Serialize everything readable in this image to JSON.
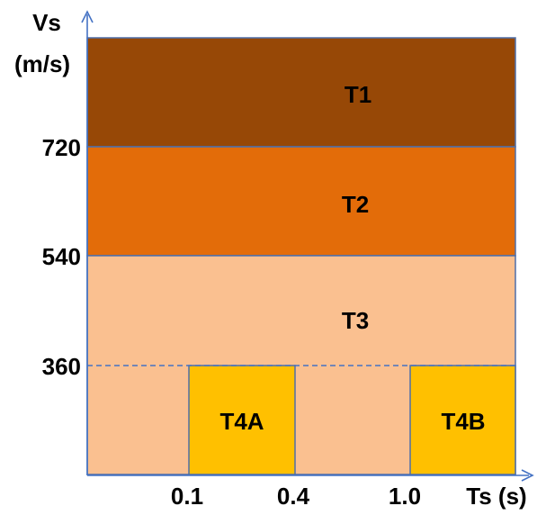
{
  "axes": {
    "y_title_line1": "Vs",
    "y_title_line2": "(m/s)",
    "x_title": "Ts (s)",
    "y_ticks": [
      "720",
      "540",
      "360"
    ],
    "x_ticks": [
      "0.1",
      "0.4",
      "1.0"
    ],
    "color": "#4472c4"
  },
  "zones": {
    "t1": {
      "label": "T1",
      "color": "#974806"
    },
    "t2": {
      "label": "T2",
      "color": "#e36c09"
    },
    "t3": {
      "label": "T3",
      "color": "#fac090"
    },
    "t4a": {
      "label": "T4A",
      "color": "#ffc000"
    },
    "t4b": {
      "label": "T4B",
      "color": "#ffc000"
    }
  },
  "border_color": "#4f6fa8",
  "dashed_line_color": "#4472c4"
}
